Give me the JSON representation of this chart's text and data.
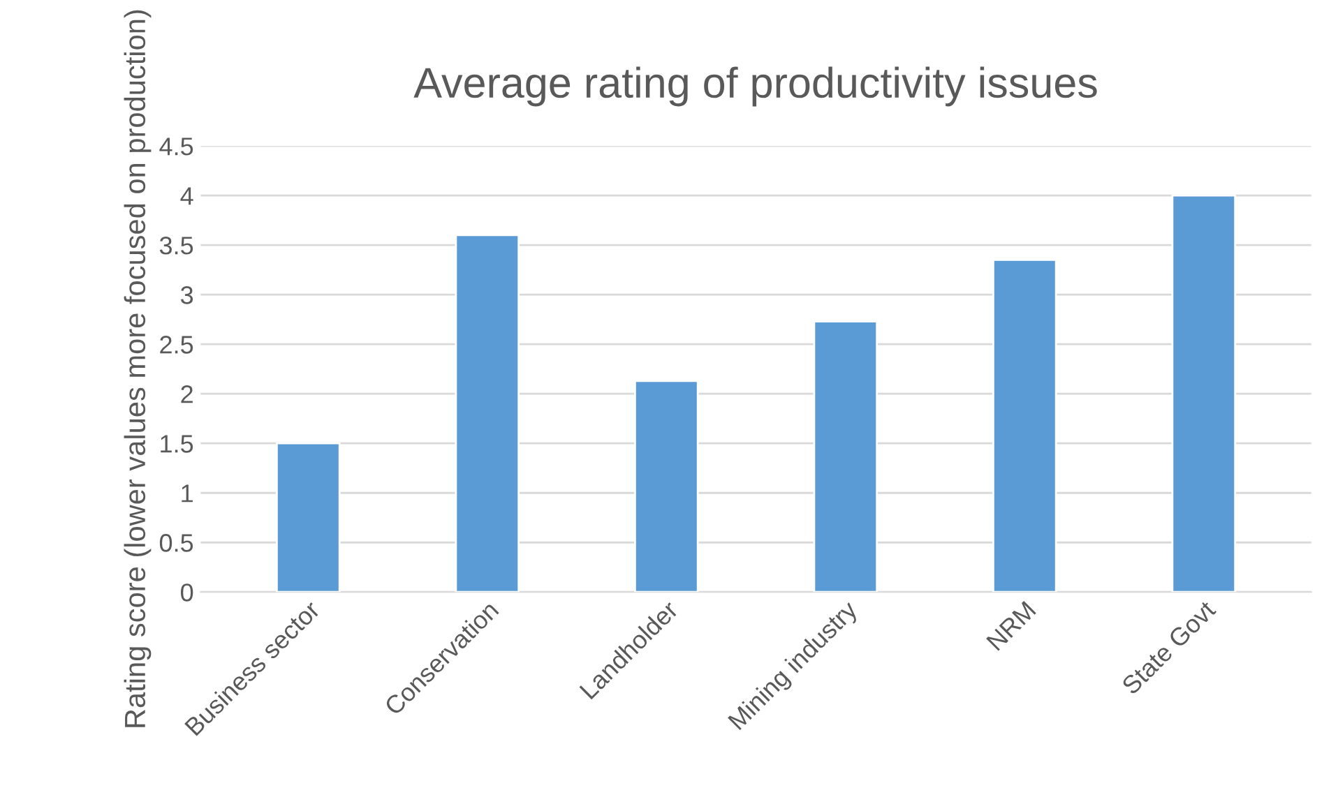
{
  "chart_data": {
    "type": "bar",
    "title": "Average rating of productivity issues",
    "ylabel": "Rating score (lower values more focused on production)",
    "categories": [
      "Business sector",
      "Conservation",
      "Landholder",
      "Mining industry",
      "NRM",
      "State Govt"
    ],
    "values": [
      1.5,
      3.6,
      2.13,
      2.73,
      3.35,
      4.0
    ],
    "color": "#5b9bd5",
    "ylim": [
      0,
      4.5
    ],
    "yticks": [
      0,
      {
        "value": 0.5,
        "label": "0.5"
      },
      1,
      {
        "value": 1.5,
        "label": "1.5"
      },
      2,
      {
        "value": 2.5,
        "label": "2.5"
      },
      3,
      {
        "value": 3.5,
        "label": "3.5"
      },
      4,
      {
        "value": 4.5,
        "label": "4.5"
      }
    ],
    "grid": "y",
    "legend": false
  }
}
